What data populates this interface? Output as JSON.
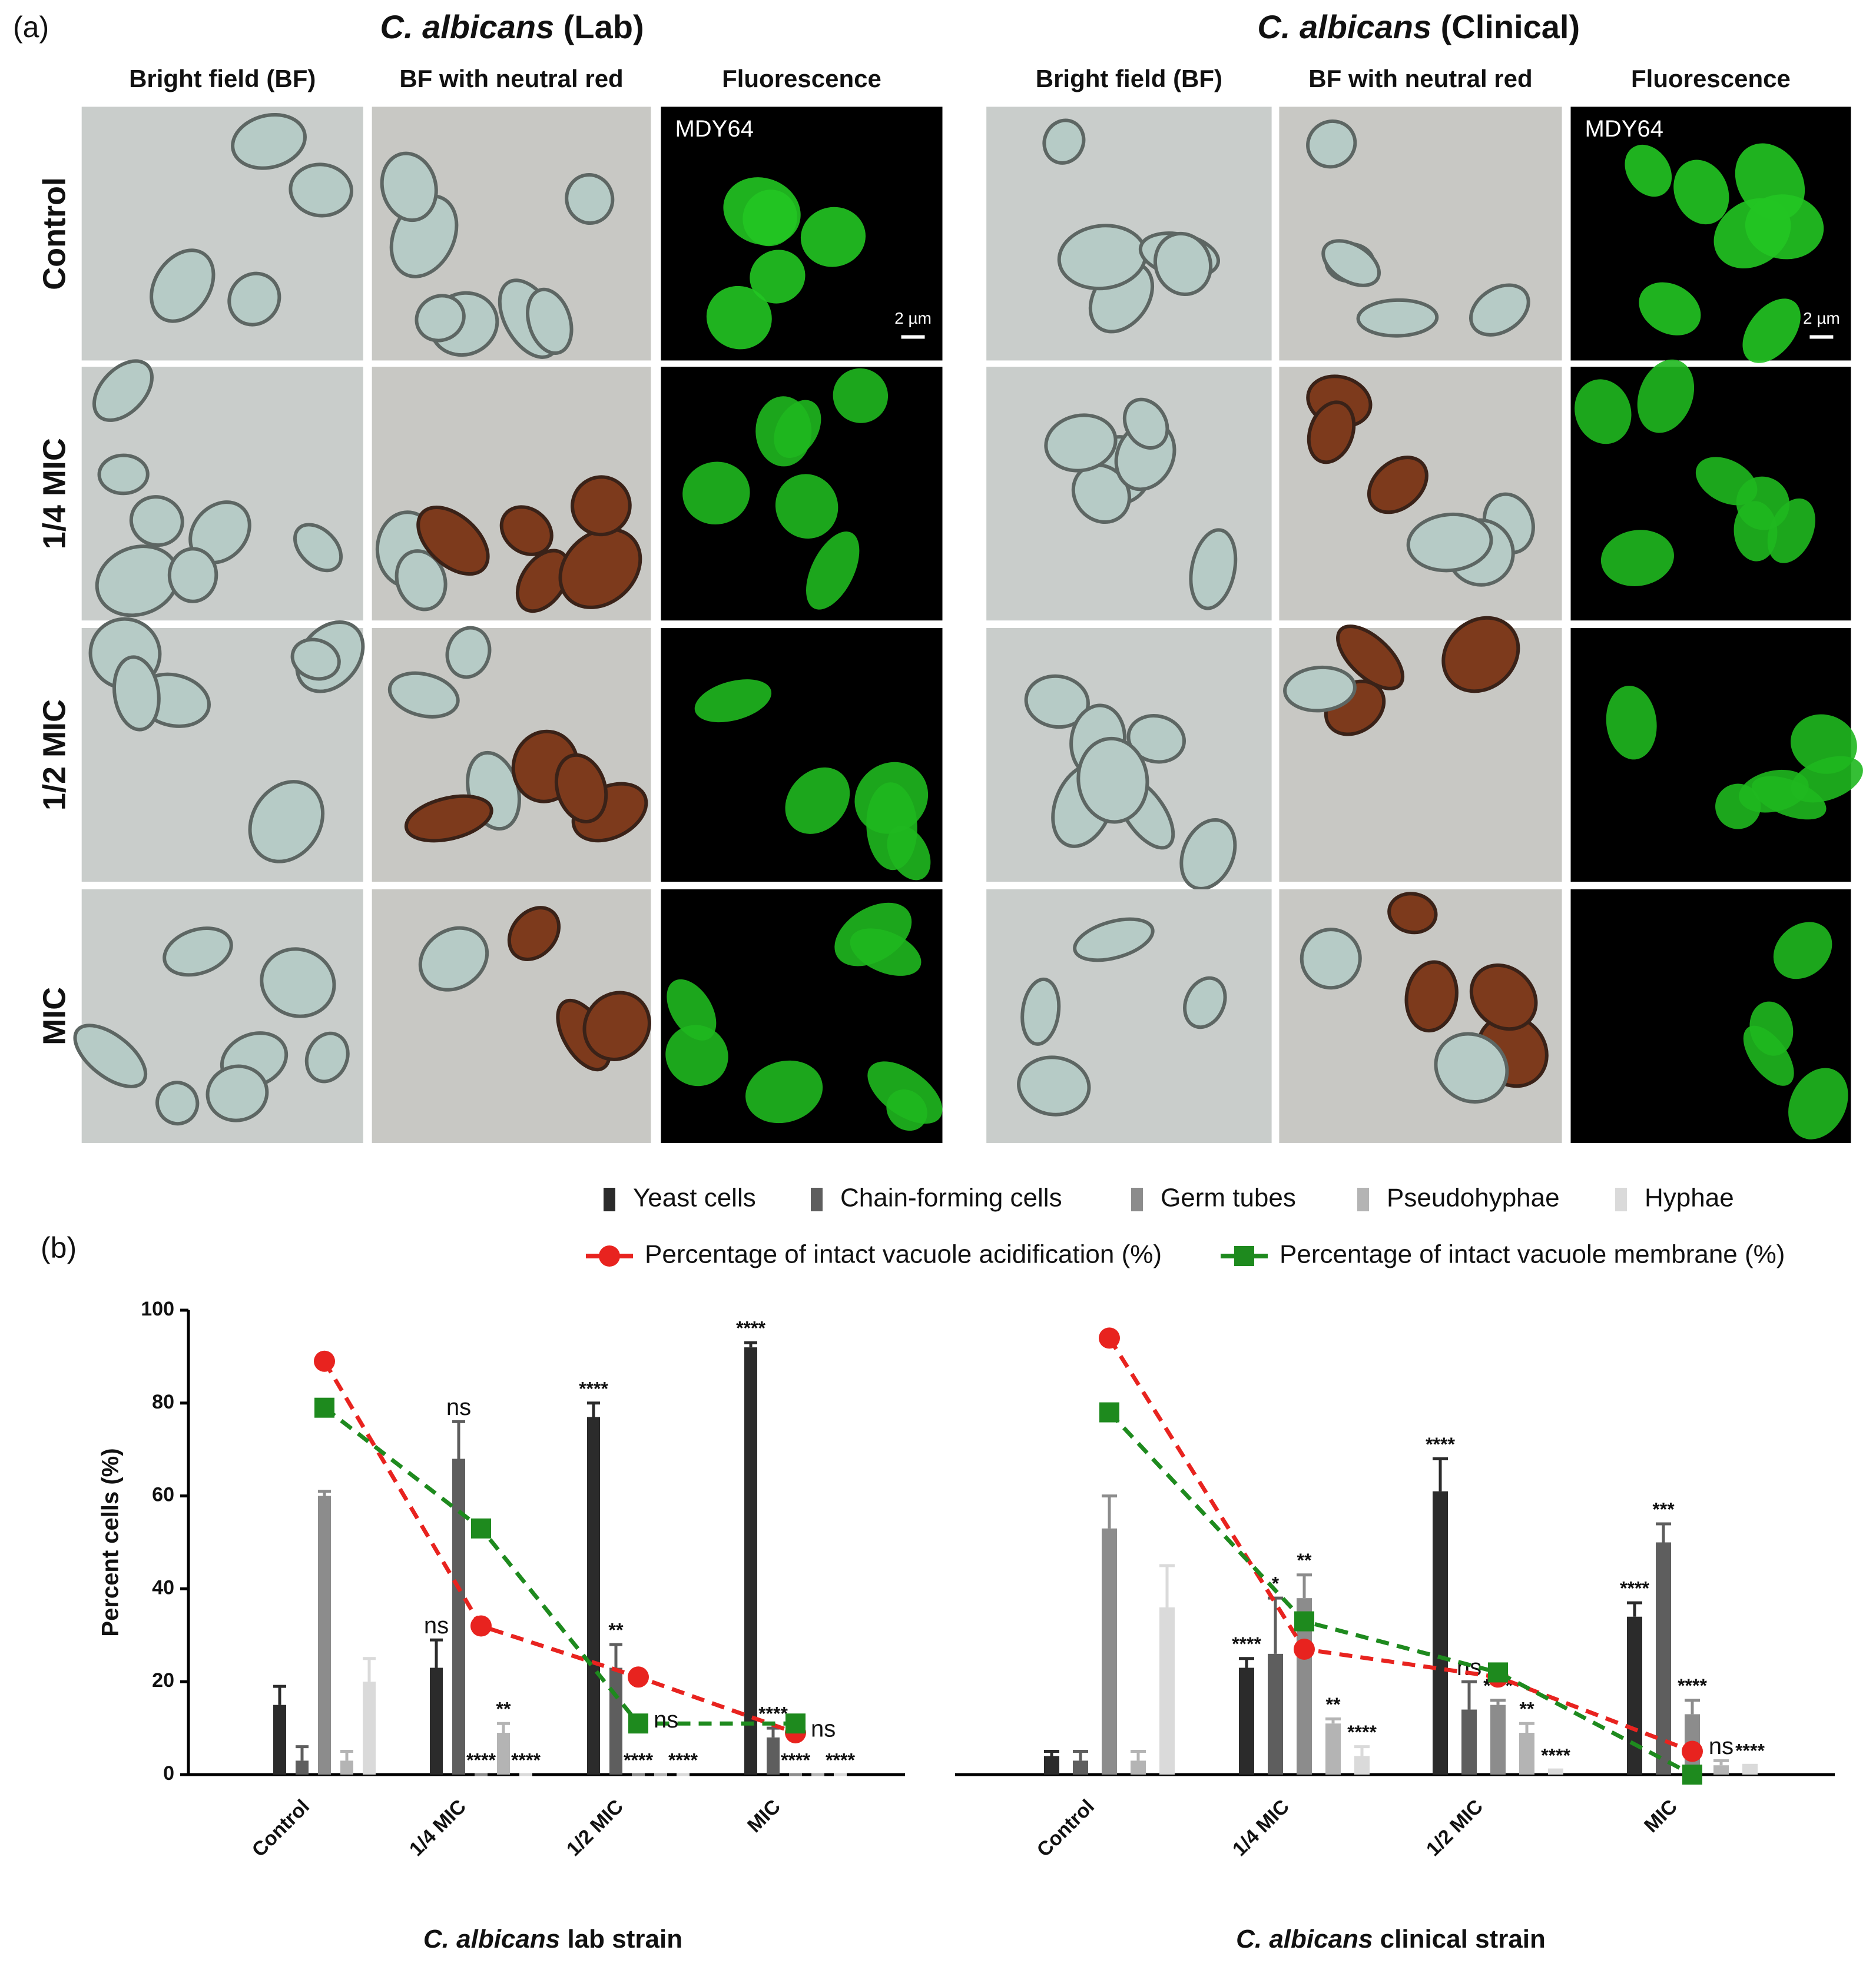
{
  "panel_a": {
    "label": "(a)",
    "groups": [
      {
        "species": "C. albicans",
        "strain": "(Lab)",
        "columns": [
          "Bright field (BF)",
          "BF with neutral red",
          "Fluorescence"
        ]
      },
      {
        "species": "C. albicans",
        "strain": "(Clinical)",
        "columns": [
          "Bright field (BF)",
          "BF with neutral red",
          "Fluorescence"
        ]
      }
    ],
    "rows": [
      "Control",
      "1/4 MIC",
      "1/2 MIC",
      "MIC"
    ],
    "stain_label": "MDY64",
    "scale_bar": "2 µm"
  },
  "panel_b_label": "(b)",
  "chart_data": [
    {
      "type": "bar",
      "ylabel": "Percent cells (%)",
      "xlabel_species": "C. albicans",
      "xlabel_rest": "lab strain",
      "categories": [
        "Control",
        "1/4 MIC",
        "1/2 MIC",
        "MIC"
      ],
      "ylim": [
        0,
        100
      ],
      "yticks": [
        0,
        20,
        40,
        60,
        80,
        100
      ],
      "series": [
        {
          "name": "Yeast cells",
          "color": "#2b2b2b",
          "values": [
            15,
            23,
            77,
            92
          ],
          "errors": [
            4,
            6,
            3,
            1
          ],
          "significance": [
            null,
            "ns",
            "****",
            "****"
          ]
        },
        {
          "name": "Chain-forming cells",
          "color": "#5e5e5e",
          "values": [
            3,
            68,
            23,
            8
          ],
          "errors": [
            3,
            8,
            5,
            2
          ],
          "significance": [
            null,
            "ns",
            "**",
            "****"
          ]
        },
        {
          "name": "Germ tubes",
          "color": "#8c8c8c",
          "values": [
            60,
            0,
            0,
            0
          ],
          "errors": [
            1,
            0,
            0,
            0
          ],
          "significance": [
            null,
            "****",
            "****",
            "****"
          ]
        },
        {
          "name": "Pseudohyphae",
          "color": "#b4b4b4",
          "values": [
            3,
            9,
            0,
            0
          ],
          "errors": [
            2,
            2,
            0,
            0
          ],
          "significance": [
            null,
            "**",
            null,
            null
          ]
        },
        {
          "name": "Hyphae",
          "color": "#dadada",
          "values": [
            20,
            0,
            0,
            0
          ],
          "errors": [
            5,
            0,
            0,
            0
          ],
          "significance": [
            null,
            "****",
            "****",
            "****"
          ]
        },
        {
          "name": "Percentage of intact vacuole acidification (%)",
          "type": "line",
          "marker": "circle",
          "color": "#e8231f",
          "values": [
            89,
            32,
            21,
            9
          ],
          "significance": [
            null,
            null,
            null,
            "ns"
          ]
        },
        {
          "name": "Percentage of intact vacuole membrane (%)",
          "type": "line",
          "marker": "square",
          "color": "#1e8a1e",
          "values": [
            79,
            53,
            11,
            11
          ],
          "significance": [
            null,
            null,
            "ns",
            null
          ]
        }
      ]
    },
    {
      "type": "bar",
      "xlabel_species": "C. albicans",
      "xlabel_rest": "clinical strain",
      "categories": [
        "Control",
        "1/4 MIC",
        "1/2 MIC",
        "MIC"
      ],
      "ylim": [
        0,
        100
      ],
      "series": [
        {
          "color": "#2b2b2b",
          "values": [
            4,
            23,
            61,
            34
          ],
          "errors": [
            1,
            2,
            7,
            3
          ],
          "significance": [
            null,
            "****",
            "****",
            "****"
          ]
        },
        {
          "color": "#5e5e5e",
          "values": [
            3,
            26,
            14,
            50
          ],
          "errors": [
            2,
            12,
            6,
            4
          ],
          "significance": [
            null,
            "*",
            "ns",
            "***"
          ]
        },
        {
          "color": "#8c8c8c",
          "values": [
            53,
            38,
            15,
            13
          ],
          "errors": [
            7,
            5,
            1,
            3
          ],
          "significance": [
            null,
            "**",
            "****",
            "****"
          ]
        },
        {
          "color": "#b4b4b4",
          "values": [
            3,
            11,
            9,
            2
          ],
          "errors": [
            2,
            1,
            2,
            1
          ],
          "significance": [
            null,
            "**",
            "**",
            "ns"
          ]
        },
        {
          "color": "#dadada",
          "values": [
            36,
            4,
            1,
            2
          ],
          "errors": [
            9,
            2,
            0,
            0
          ],
          "significance": [
            null,
            "****",
            "****",
            "****"
          ]
        },
        {
          "type": "line",
          "marker": "circle",
          "color": "#e8231f",
          "values": [
            94,
            27,
            21,
            5
          ]
        },
        {
          "type": "line",
          "marker": "square",
          "color": "#1e8a1e",
          "values": [
            78,
            33,
            22,
            0
          ]
        }
      ]
    }
  ]
}
